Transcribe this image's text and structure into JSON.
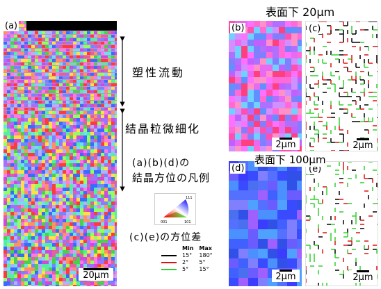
{
  "panels": {
    "a": {
      "label": "(a)",
      "scale": "20μm"
    },
    "b": {
      "label": "(b)",
      "scale": "2μm"
    },
    "c": {
      "label": "(c)",
      "scale": "2μm"
    },
    "d": {
      "label": "(d)",
      "scale": "2μm"
    },
    "e": {
      "label": "(e)",
      "scale": "2μm"
    }
  },
  "headings": {
    "depth_20": "表面下 20μm",
    "depth_100": "表面下 100μm"
  },
  "annotations": {
    "plastic_flow": "塑性流動",
    "grain_refinement": "結晶粒微細化",
    "orientation_legend_line1": "(a)(b)(d)の",
    "orientation_legend_line2": "結晶方位の凡例",
    "misorientation_title": "(c)(e)の方位差"
  },
  "triangle_legend": {
    "tick_left": "001",
    "tick_right": "101",
    "tick_top": "111"
  },
  "misorientation_legend": {
    "headers": [
      "Min",
      "Max"
    ],
    "rows": [
      {
        "color": "#000000",
        "min": "15°",
        "max": "180°"
      },
      {
        "color": "#e01010",
        "min": "2°",
        "max": "5°"
      },
      {
        "color": "#30d030",
        "min": "5°",
        "max": "15°"
      }
    ]
  }
}
